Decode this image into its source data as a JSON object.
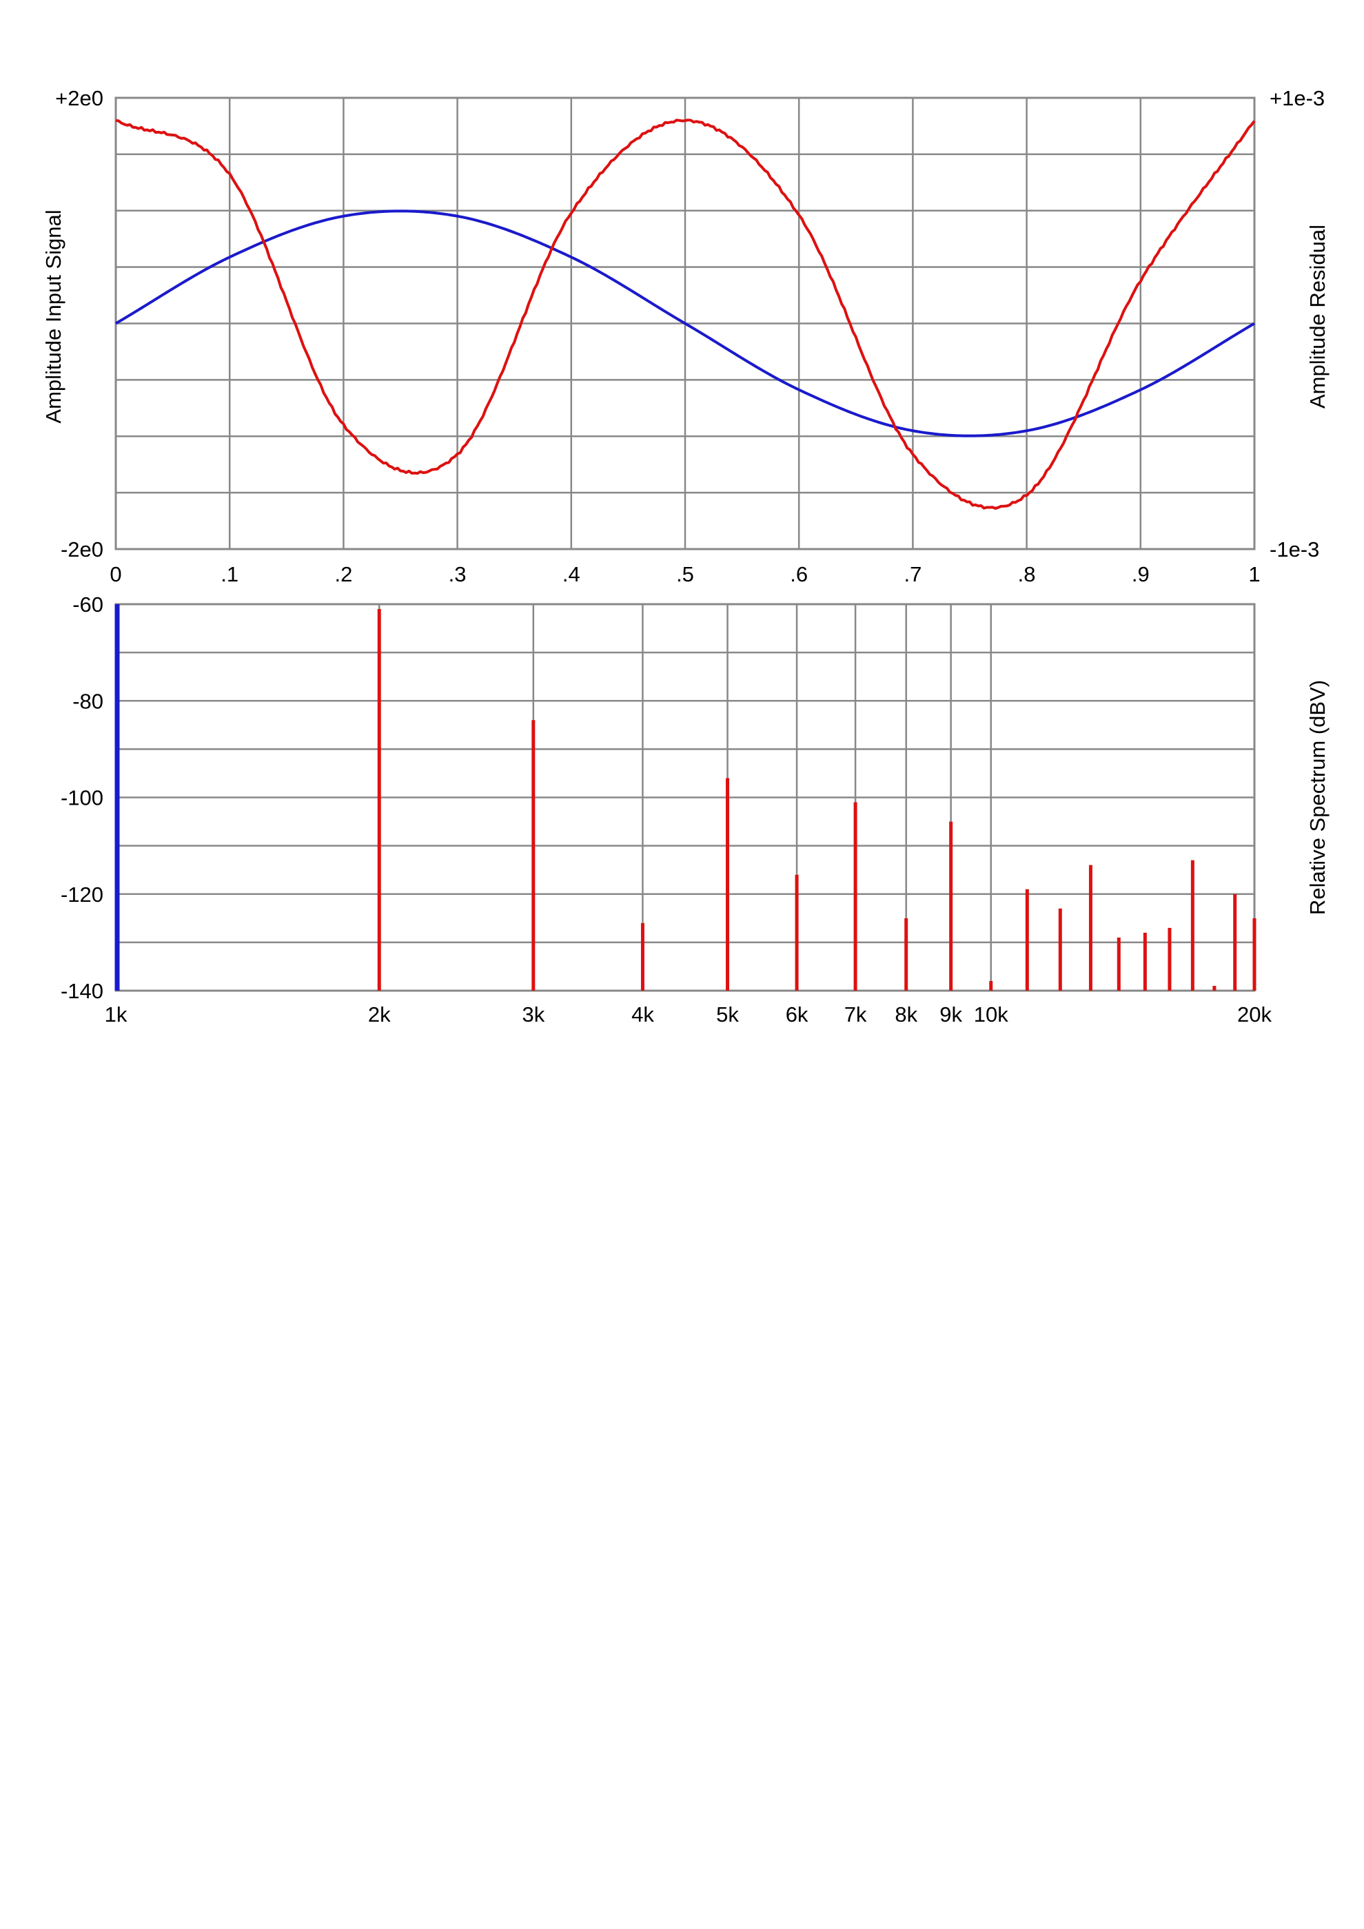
{
  "chart_data": [
    {
      "type": "line",
      "x": [
        0,
        0.1,
        0.2,
        0.3,
        0.4,
        0.5,
        0.6,
        0.7,
        0.8,
        0.9,
        1
      ],
      "x_tick_labels": [
        "0",
        ".1",
        ".2",
        ".3",
        ".4",
        ".5",
        ".6",
        ".7",
        ".8",
        ".9",
        "1"
      ],
      "xlim": [
        0,
        1
      ],
      "ylabel": "Amplitude Input Signal",
      "y2label": "Amplitude Residual",
      "ylim": [
        -2,
        2
      ],
      "y2lim": [
        -0.001,
        0.001
      ],
      "y_tick_labels": [
        "+2e0",
        "-2e0"
      ],
      "y2_tick_labels": [
        "+1e-3",
        "-1e-3"
      ],
      "grid": true,
      "series": [
        {
          "axis": "left",
          "color": "#1a1acc",
          "values": [
            0,
            0.5878,
            0.9511,
            0.9511,
            0.5878,
            0,
            -0.5878,
            -0.9511,
            -0.9511,
            -0.5878,
            0
          ]
        },
        {
          "axis": "right",
          "color": "#dd1111",
          "values": [
            0.0009,
            0.00066,
            -0.00045,
            -0.00058,
            0.00049,
            0.0009,
            0.00048,
            -0.00058,
            -0.00076,
            0.00019,
            0.0009
          ]
        }
      ]
    },
    {
      "type": "bar",
      "x_scale": "log",
      "xlim": [
        1000,
        20000
      ],
      "x_ticks": [
        1000,
        2000,
        3000,
        4000,
        5000,
        6000,
        7000,
        8000,
        9000,
        10000,
        20000
      ],
      "x_tick_labels": [
        "1k",
        "2k",
        "3k",
        "4k",
        "5k",
        "6k",
        "7k",
        "8k",
        "9k",
        "10k",
        "20k"
      ],
      "ylabel": "Relative Spectrum (dBV)",
      "ylim": [
        -140,
        -60
      ],
      "y_ticks": [
        -60,
        -80,
        -100,
        -120,
        -140
      ],
      "y_tick_labels": [
        "-60",
        "-80",
        "-100",
        "-120",
        "-140"
      ],
      "grid": true,
      "series": [
        {
          "color": "#1a1acc",
          "x": [
            1000
          ],
          "values": [
            -60
          ]
        },
        {
          "color": "#dd1111",
          "x": [
            2000,
            3000,
            4000,
            5000,
            6000,
            7000,
            8000,
            9000,
            10000,
            11000,
            12000,
            13000,
            14000,
            15000,
            16000,
            17000,
            18000,
            19000,
            20000
          ],
          "values": [
            -61,
            -84,
            -126,
            -96,
            -116,
            -101,
            -125,
            -105,
            -138,
            -119,
            -123,
            -114,
            -129,
            -128,
            -127,
            -113,
            -139,
            -120,
            -125
          ]
        }
      ]
    }
  ]
}
